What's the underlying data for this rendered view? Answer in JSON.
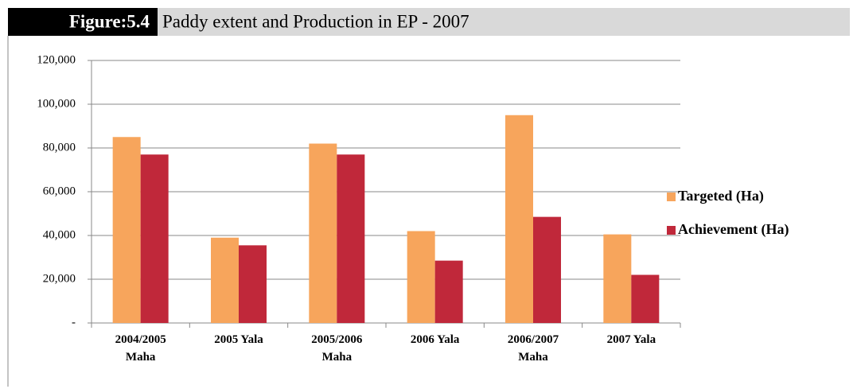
{
  "chart_data": {
    "type": "bar",
    "title_figure": "Figure:5.4",
    "title": "Paddy extent and Production in EP - 2007",
    "categories": [
      "2004/2005\nMaha",
      "2005 Yala",
      "2005/2006\nMaha",
      "2006 Yala",
      "2006/2007\nMaha",
      "2007 Yala"
    ],
    "series": [
      {
        "name": "Targeted (Ha)",
        "color": "#f7a55c",
        "values": [
          85000,
          39000,
          82000,
          42000,
          95000,
          40500
        ]
      },
      {
        "name": "Achievement (Ha)",
        "color": "#c0283a",
        "values": [
          77000,
          35500,
          77000,
          28500,
          48500,
          22000
        ]
      }
    ],
    "ylim": [
      0,
      120000
    ],
    "yticks": [
      {
        "value": 0,
        "label": "-"
      },
      {
        "value": 20000,
        "label": "20,000"
      },
      {
        "value": 40000,
        "label": "40,000"
      },
      {
        "value": 60000,
        "label": "60,000"
      },
      {
        "value": 80000,
        "label": "80,000"
      },
      {
        "value": 100000,
        "label": "100,000"
      },
      {
        "value": 120000,
        "label": "120,000"
      }
    ],
    "grid": true,
    "legend": "right"
  }
}
